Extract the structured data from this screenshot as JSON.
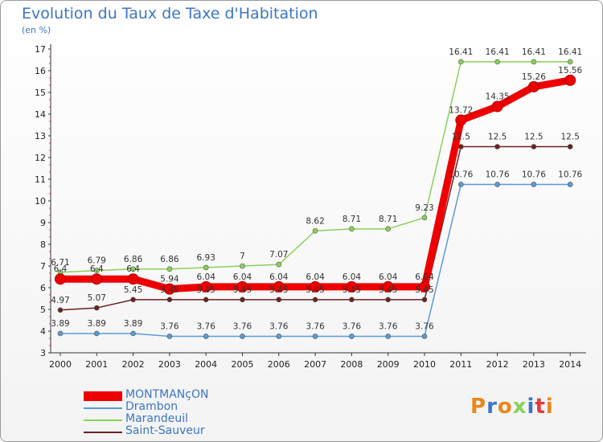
{
  "title": "Evolution du Taux de Taxe d'Habitation",
  "subtitle": "(en %)",
  "logo_text": "Proxiti",
  "chart_data": {
    "type": "line",
    "x": [
      "2000",
      "2001",
      "2002",
      "2003",
      "2004",
      "2005",
      "2006",
      "2007",
      "2008",
      "2009",
      "2010",
      "2011",
      "2012",
      "2013",
      "2014"
    ],
    "ylim": [
      3,
      17
    ],
    "yticks": [
      "3",
      "4",
      "5",
      "6",
      "7",
      "8",
      "9",
      "10",
      "11",
      "12",
      "13",
      "14",
      "15",
      "16",
      "17"
    ],
    "grid": false,
    "legend_position": "bottom-left",
    "series": [
      {
        "name": "MONTMANçON",
        "color": "#ee0000",
        "values": [
          6.4,
          6.4,
          6.4,
          5.94,
          6.04,
          6.04,
          6.04,
          6.04,
          6.04,
          6.04,
          6.04,
          13.72,
          14.35,
          15.26,
          15.56
        ],
        "labels": [
          "6.4",
          "6.4",
          "6.4",
          "5.94",
          "6.04",
          "6.04",
          "6.04",
          "6.04",
          "6.04",
          "6.04",
          "6.04",
          "13.72",
          "14.35",
          "15.26",
          "15.56"
        ]
      },
      {
        "name": "Drambon",
        "color": "#5b9bd5",
        "values": [
          3.89,
          3.89,
          3.89,
          3.76,
          3.76,
          3.76,
          3.76,
          3.76,
          3.76,
          3.76,
          3.76,
          10.76,
          10.76,
          10.76,
          10.76
        ],
        "labels": [
          "3.89",
          "3.89",
          "3.89",
          "3.76",
          "3.76",
          "3.76",
          "3.76",
          "3.76",
          "3.76",
          "3.76",
          "3.76",
          "10.76",
          "10.76",
          "10.76",
          "10.76"
        ]
      },
      {
        "name": "Marandeuil",
        "color": "#8ad15a",
        "values": [
          6.71,
          6.79,
          6.86,
          6.86,
          6.93,
          7,
          7.07,
          8.62,
          8.71,
          8.71,
          9.23,
          16.41,
          16.41,
          16.41,
          16.41
        ],
        "labels": [
          "6.71",
          "6.79",
          "6.86",
          "6.86",
          "6.93",
          "7",
          "7.07",
          "8.62",
          "8.71",
          "8.71",
          "9.23",
          "16.41",
          "16.41",
          "16.41",
          "16.41"
        ]
      },
      {
        "name": "Saint-Sauveur",
        "color": "#6b2121",
        "values": [
          4.97,
          5.07,
          5.45,
          5.45,
          5.45,
          5.45,
          5.45,
          5.45,
          5.45,
          5.45,
          5.45,
          12.5,
          12.5,
          12.5,
          12.5
        ],
        "labels": [
          "4.97",
          "5.07",
          "5.45",
          "5.45",
          "5.45",
          "5.45",
          "5.45",
          "5.45",
          "5.45",
          "5.45",
          "5.45",
          "12.5",
          "12.5",
          "12.5",
          "12.5"
        ]
      }
    ]
  },
  "colors": {
    "title": "#3b76c4",
    "axis": "#333333",
    "tick_mark": "#e23b3b",
    "logo": [
      "#e8871e",
      "#3b76c4",
      "#e8871e",
      "#8ad15a",
      "#3b76c4",
      "#e23b3b",
      "#e8871e"
    ]
  }
}
